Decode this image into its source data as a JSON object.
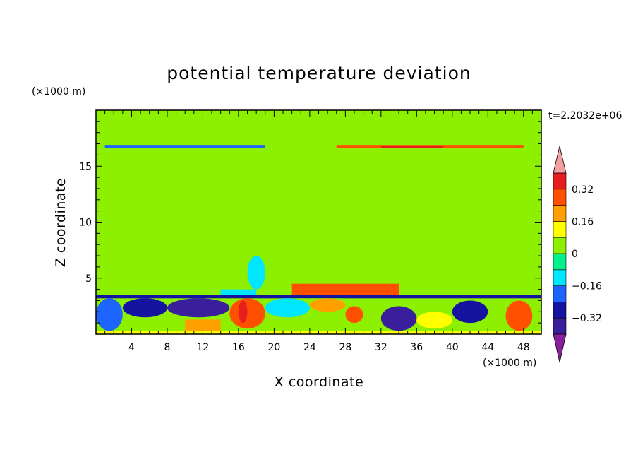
{
  "chart_data": {
    "type": "heatmap",
    "title": "potential temperature deviation",
    "xlabel": "X coordinate",
    "ylabel": "Z coordinate",
    "x_unit": "(×1000 m)",
    "y_unit": "(×1000 m)",
    "time_label": "t=2.2032e+06",
    "xlim": [
      0,
      50
    ],
    "ylim": [
      0,
      20
    ],
    "x_ticks": [
      4,
      8,
      12,
      16,
      20,
      24,
      28,
      32,
      36,
      40,
      44,
      48
    ],
    "y_ticks": [
      5,
      10,
      15
    ],
    "colorbar": {
      "levels": [
        -0.4,
        -0.32,
        -0.24,
        -0.16,
        -0.08,
        0,
        0.08,
        0.16,
        0.24,
        0.32,
        0.4
      ],
      "labels": [
        "0.32",
        "0.16",
        "0",
        "−0.16",
        "−0.32"
      ],
      "label_values": [
        0.32,
        0.16,
        0,
        -0.16,
        -0.32
      ],
      "colors": [
        "#8a1f9c",
        "#3a1f9c",
        "#1414a0",
        "#1e64ff",
        "#00e6ff",
        "#00f08c",
        "#8cf000",
        "#ffff00",
        "#ffa000",
        "#ff5000",
        "#e61e1e",
        "#f4a0a0"
      ]
    },
    "regions": [
      {
        "x0": 0,
        "x1": 50,
        "y0": 0,
        "y1": 20,
        "v": 0.0
      },
      {
        "x0": 0,
        "x1": 14,
        "y0": 17,
        "y1": 20,
        "v": 0.03
      },
      {
        "x0": 26,
        "x1": 50,
        "y0": 17,
        "y1": 20,
        "v": 0.03
      },
      {
        "x0": 23,
        "x1": 49,
        "y0": 6,
        "y1": 16,
        "v": 0.03
      },
      {
        "x0": 21,
        "x1": 30,
        "y0": 5,
        "y1": 11,
        "v": 0.03
      },
      {
        "x0": 1,
        "x1": 12,
        "y0": 3.8,
        "y1": 8,
        "v": 0.03
      },
      {
        "x0": 5,
        "x1": 10,
        "y0": 8,
        "y1": 11,
        "v": 0.03
      },
      {
        "x0": 8,
        "x1": 13,
        "y0": 4,
        "y1": 7,
        "v": 0.03
      },
      {
        "x0": 1,
        "x1": 19,
        "y0": 16.6,
        "y1": 16.9,
        "v": -0.2
      },
      {
        "x0": 27,
        "x1": 48,
        "y0": 16.6,
        "y1": 16.9,
        "v": 0.3
      },
      {
        "x0": 32,
        "x1": 39,
        "y0": 16.65,
        "y1": 16.85,
        "v": 0.38
      },
      {
        "x0": 17,
        "x1": 19,
        "y0": 4,
        "y1": 7,
        "v": -0.1
      },
      {
        "x0": 14,
        "x1": 18,
        "y0": 3.4,
        "y1": 4,
        "v": -0.1
      },
      {
        "x0": 0,
        "x1": 50,
        "y0": 3.2,
        "y1": 3.5,
        "v": -0.28
      },
      {
        "x0": 0,
        "x1": 50,
        "y0": 0,
        "y1": 3.2,
        "v": 0.05
      },
      {
        "x0": 0,
        "x1": 3,
        "y0": 0.3,
        "y1": 3.2,
        "v": -0.2
      },
      {
        "x0": 3,
        "x1": 8,
        "y0": 1.5,
        "y1": 3.2,
        "v": -0.3
      },
      {
        "x0": 8,
        "x1": 15,
        "y0": 1.5,
        "y1": 3.2,
        "v": -0.35
      },
      {
        "x0": 15,
        "x1": 19,
        "y0": 0.5,
        "y1": 3.2,
        "v": 0.3
      },
      {
        "x0": 16,
        "x1": 17,
        "y0": 1,
        "y1": 3,
        "v": 0.38
      },
      {
        "x0": 19,
        "x1": 24,
        "y0": 1.5,
        "y1": 3.2,
        "v": -0.15
      },
      {
        "x0": 24,
        "x1": 28,
        "y0": 2,
        "y1": 3.2,
        "v": 0.2
      },
      {
        "x0": 28,
        "x1": 30,
        "y0": 1,
        "y1": 2.5,
        "v": 0.3
      },
      {
        "x0": 32,
        "x1": 36,
        "y0": 0.3,
        "y1": 2.5,
        "v": -0.35
      },
      {
        "x0": 36,
        "x1": 40,
        "y0": 0.5,
        "y1": 2,
        "v": 0.12
      },
      {
        "x0": 40,
        "x1": 44,
        "y0": 1,
        "y1": 3,
        "v": -0.25
      },
      {
        "x0": 46,
        "x1": 49,
        "y0": 0.3,
        "y1": 3,
        "v": 0.3
      },
      {
        "x0": 10,
        "x1": 14,
        "y0": 0.3,
        "y1": 1.3,
        "v": 0.18
      },
      {
        "x0": 0,
        "x1": 50,
        "y0": 0,
        "y1": 0.3,
        "v": 0.08
      },
      {
        "x0": 22,
        "x1": 34,
        "y0": 3.5,
        "y1": 4.5,
        "v": 0.25
      }
    ]
  }
}
